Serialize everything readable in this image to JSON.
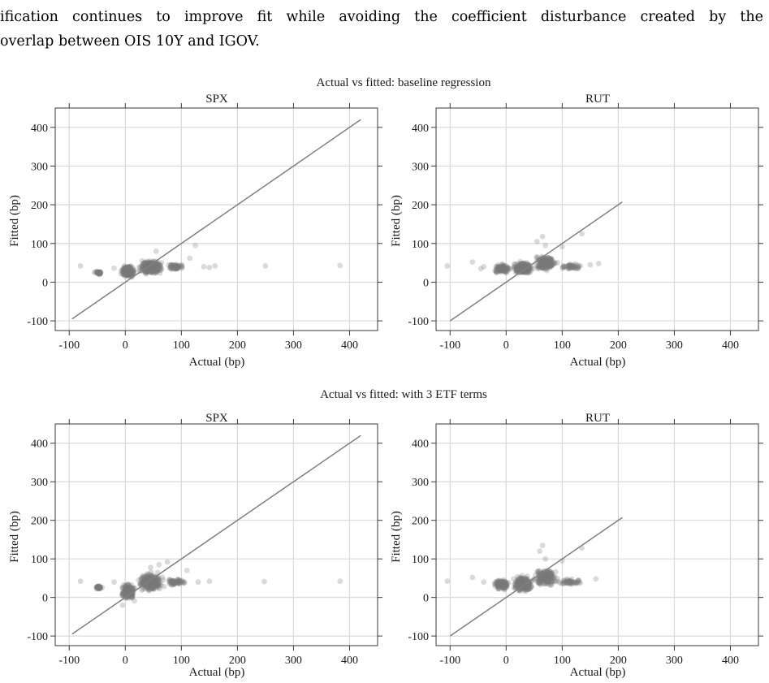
{
  "paragraph": {
    "line1": "ification continues to improve fit while avoiding the coefficient disturbance created by the",
    "line2": "overlap between OIS 10Y and IGOV."
  },
  "chart_data": [
    {
      "section_title": "Actual vs fitted: baseline regression",
      "panels": [
        {
          "type": "scatter",
          "title": "SPX",
          "xlabel": "Actual (bp)",
          "ylabel": "Fitted (bp)",
          "xlim": [
            -125,
            450
          ],
          "ylim": [
            -125,
            450
          ],
          "xticks": [
            -100,
            0,
            100,
            200,
            300,
            400
          ],
          "yticks": [
            -100,
            0,
            100,
            200,
            300,
            400
          ],
          "grid": true,
          "reference_line": [
            [
              -95,
              -95
            ],
            [
              420,
              420
            ]
          ],
          "clusters": [
            {
              "x": [
                -55,
                -40
              ],
              "y": [
                18,
                30
              ],
              "n": 40
            },
            {
              "x": [
                -10,
                20
              ],
              "y": [
                10,
                45
              ],
              "n": 220
            },
            {
              "x": [
                20,
                70
              ],
              "y": [
                15,
                62
              ],
              "n": 320
            },
            {
              "x": [
                70,
                110
              ],
              "y": [
                28,
                50
              ],
              "n": 60
            }
          ],
          "points": [
            [
              -80,
              42
            ],
            [
              -55,
              25
            ],
            [
              -20,
              36
            ],
            [
              115,
              62
            ],
            [
              125,
              95
            ],
            [
              140,
              40
            ],
            [
              150,
              38
            ],
            [
              160,
              42
            ],
            [
              250,
              42
            ],
            [
              383,
              43
            ],
            [
              30,
              55
            ],
            [
              55,
              80
            ]
          ]
        },
        {
          "type": "scatter",
          "title": "RUT",
          "xlabel": "Actual (bp)",
          "ylabel": "Fitted (bp)",
          "xlim": [
            -125,
            450
          ],
          "ylim": [
            -125,
            450
          ],
          "xticks": [
            -100,
            0,
            100,
            200,
            300,
            400
          ],
          "yticks": [
            -100,
            0,
            100,
            200,
            300,
            400
          ],
          "grid": true,
          "reference_line": [
            [
              -100,
              -100
            ],
            [
              207,
              207
            ]
          ],
          "clusters": [
            {
              "x": [
                -25,
                10
              ],
              "y": [
                22,
                48
              ],
              "n": 160
            },
            {
              "x": [
                10,
                50
              ],
              "y": [
                18,
                55
              ],
              "n": 280
            },
            {
              "x": [
                45,
                95
              ],
              "y": [
                25,
                75
              ],
              "n": 200
            },
            {
              "x": [
                90,
                140
              ],
              "y": [
                30,
                50
              ],
              "n": 50
            }
          ],
          "points": [
            [
              -105,
              42
            ],
            [
              -60,
              52
            ],
            [
              -40,
              40
            ],
            [
              55,
              105
            ],
            [
              65,
              118
            ],
            [
              70,
              95
            ],
            [
              100,
              92
            ],
            [
              135,
              125
            ],
            [
              150,
              45
            ],
            [
              165,
              48
            ],
            [
              80,
              60
            ],
            [
              -45,
              35
            ]
          ]
        }
      ]
    },
    {
      "section_title": "Actual vs fitted: with 3 ETF terms",
      "panels": [
        {
          "type": "scatter",
          "title": "SPX",
          "xlabel": "Actual (bp)",
          "ylabel": "Fitted (bp)",
          "xlim": [
            -125,
            450
          ],
          "ylim": [
            -125,
            450
          ],
          "xticks": [
            -100,
            0,
            100,
            200,
            300,
            400
          ],
          "yticks": [
            -100,
            0,
            100,
            200,
            300,
            400
          ],
          "grid": true,
          "reference_line": [
            [
              -95,
              -95
            ],
            [
              420,
              420
            ]
          ],
          "clusters": [
            {
              "x": [
                -55,
                -40
              ],
              "y": [
                20,
                32
              ],
              "n": 40
            },
            {
              "x": [
                -10,
                20
              ],
              "y": [
                -10,
                40
              ],
              "n": 220
            },
            {
              "x": [
                20,
                70
              ],
              "y": [
                10,
                70
              ],
              "n": 320
            },
            {
              "x": [
                70,
                110
              ],
              "y": [
                30,
                50
              ],
              "n": 60
            }
          ],
          "points": [
            [
              -80,
              42
            ],
            [
              -20,
              40
            ],
            [
              60,
              85
            ],
            [
              75,
              92
            ],
            [
              110,
              70
            ],
            [
              130,
              40
            ],
            [
              150,
              42
            ],
            [
              248,
              41
            ],
            [
              383,
              42
            ],
            [
              45,
              78
            ],
            [
              -5,
              -20
            ]
          ]
        },
        {
          "type": "scatter",
          "title": "RUT",
          "xlabel": "Actual (bp)",
          "ylabel": "Fitted (bp)",
          "xlim": [
            -125,
            450
          ],
          "ylim": [
            -125,
            450
          ],
          "xticks": [
            -100,
            0,
            100,
            200,
            300,
            400
          ],
          "yticks": [
            -100,
            0,
            100,
            200,
            300,
            400
          ],
          "grid": true,
          "reference_line": [
            [
              -100,
              -100
            ],
            [
              207,
              207
            ]
          ],
          "clusters": [
            {
              "x": [
                -25,
                10
              ],
              "y": [
                18,
                50
              ],
              "n": 160
            },
            {
              "x": [
                10,
                50
              ],
              "y": [
                10,
                60
              ],
              "n": 280
            },
            {
              "x": [
                45,
                95
              ],
              "y": [
                25,
                80
              ],
              "n": 200
            },
            {
              "x": [
                90,
                140
              ],
              "y": [
                30,
                50
              ],
              "n": 50
            }
          ],
          "points": [
            [
              -105,
              42
            ],
            [
              -60,
              52
            ],
            [
              -40,
              40
            ],
            [
              60,
              120
            ],
            [
              65,
              135
            ],
            [
              70,
              100
            ],
            [
              100,
              95
            ],
            [
              135,
              128
            ],
            [
              160,
              48
            ],
            [
              80,
              60
            ]
          ]
        }
      ]
    }
  ]
}
